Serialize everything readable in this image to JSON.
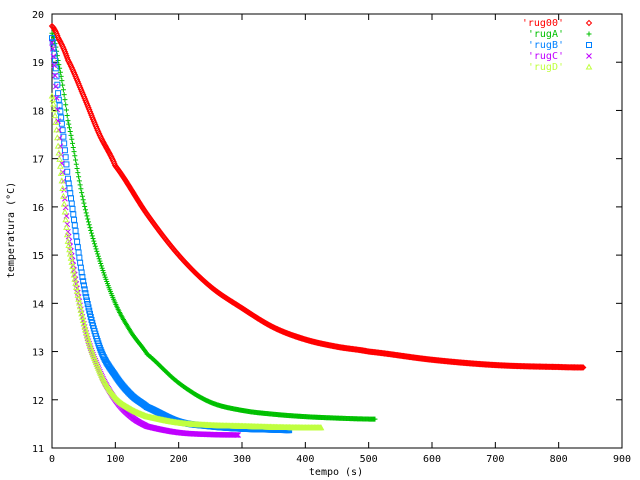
{
  "chart_data": {
    "type": "scatter",
    "title": "",
    "xlabel": "tempo (s)",
    "ylabel": "temperatura (°C)",
    "xlim": [
      0,
      900
    ],
    "ylim": [
      11,
      20
    ],
    "xticks": [
      0,
      100,
      200,
      300,
      400,
      500,
      600,
      700,
      800,
      900
    ],
    "yticks": [
      11,
      12,
      13,
      14,
      15,
      16,
      17,
      18,
      19,
      20
    ],
    "grid": false,
    "legend_position": "top-right",
    "series": [
      {
        "name": "'rug00'",
        "color": "#ff0000",
        "marker": "diamond",
        "x": [
          0,
          10,
          25,
          50,
          75,
          100,
          150,
          200,
          250,
          300,
          350,
          400,
          450,
          500,
          600,
          700,
          800,
          840
        ],
        "y": [
          19.75,
          19.5,
          19.05,
          18.3,
          17.5,
          16.85,
          15.85,
          15.0,
          14.35,
          13.9,
          13.5,
          13.25,
          13.1,
          13.0,
          12.83,
          12.72,
          12.68,
          12.67
        ]
      },
      {
        "name": "'rugA'",
        "color": "#00c000",
        "marker": "plus",
        "x": [
          0,
          10,
          25,
          50,
          75,
          100,
          125,
          150,
          200,
          250,
          300,
          350,
          400,
          450,
          500,
          510
        ],
        "y": [
          19.6,
          19.0,
          17.8,
          16.1,
          14.9,
          14.0,
          13.4,
          12.95,
          12.35,
          11.95,
          11.78,
          11.7,
          11.65,
          11.62,
          11.6,
          11.6
        ]
      },
      {
        "name": "'rugB'",
        "color": "#0080ff",
        "marker": "square",
        "x": [
          0,
          10,
          25,
          50,
          75,
          100,
          125,
          150,
          200,
          250,
          300,
          350,
          375
        ],
        "y": [
          19.5,
          18.3,
          16.6,
          14.4,
          13.1,
          12.5,
          12.1,
          11.85,
          11.55,
          11.45,
          11.4,
          11.38,
          11.37
        ]
      },
      {
        "name": "'rugC'",
        "color": "#c000ff",
        "marker": "cross",
        "x": [
          0,
          10,
          25,
          50,
          75,
          100,
          125,
          150,
          200,
          250,
          295
        ],
        "y": [
          19.4,
          17.7,
          15.5,
          13.6,
          12.6,
          12.0,
          11.65,
          11.45,
          11.32,
          11.28,
          11.27
        ]
      },
      {
        "name": "'rugD'",
        "color": "#c0ff40",
        "marker": "triangle",
        "x": [
          0,
          10,
          25,
          50,
          75,
          100,
          125,
          150,
          200,
          250,
          300,
          350,
          400,
          425
        ],
        "y": [
          18.3,
          17.2,
          15.3,
          13.6,
          12.6,
          12.05,
          11.8,
          11.65,
          11.52,
          11.47,
          11.45,
          11.43,
          11.42,
          11.42
        ]
      }
    ]
  }
}
